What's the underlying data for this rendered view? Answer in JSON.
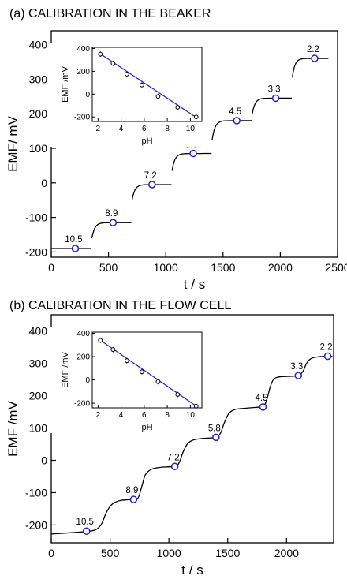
{
  "chart_data": [
    {
      "type": "line",
      "title": "(a) CALIBRATION IN THE BEAKER",
      "xlabel": "t / s",
      "ylabel": "EMF/ mV",
      "xlim": [
        0,
        2500
      ],
      "ylim": [
        -215,
        440
      ],
      "xticks": [
        0,
        500,
        1000,
        1500,
        2000,
        2500
      ],
      "yticks": [
        -200,
        -100,
        0,
        100,
        200,
        300,
        400
      ],
      "grid": false,
      "trace_segments": [
        {
          "t_start": 0,
          "t_end": 350,
          "emf_start": -190,
          "emf_plateau": -190
        },
        {
          "t_start": 355,
          "t_end": 700,
          "emf_start": -160,
          "emf_plateau": -115
        },
        {
          "t_start": 705,
          "t_end": 1050,
          "emf_start": -50,
          "emf_plateau": -5
        },
        {
          "t_start": 1055,
          "t_end": 1400,
          "emf_start": 35,
          "emf_plateau": 85
        },
        {
          "t_start": 1405,
          "t_end": 1750,
          "emf_start": 125,
          "emf_plateau": 180
        },
        {
          "t_start": 1755,
          "t_end": 2100,
          "emf_start": 200,
          "emf_plateau": 245
        },
        {
          "t_start": 2105,
          "t_end": 2420,
          "emf_start": 305,
          "emf_plateau": 360
        }
      ],
      "markers": [
        {
          "t": 210,
          "emf": -190,
          "label": "10.5"
        },
        {
          "t": 540,
          "emf": -115,
          "label": "8.9"
        },
        {
          "t": 880,
          "emf": -5,
          "label": "7.2"
        },
        {
          "t": 1240,
          "emf": 85,
          "label": "5.8"
        },
        {
          "t": 1620,
          "emf": 180,
          "label": "4.5"
        },
        {
          "t": 1960,
          "emf": 245,
          "label": "3.3"
        },
        {
          "t": 2300,
          "emf": 360,
          "label": "2.2"
        }
      ],
      "inset": {
        "xlabel": "pH",
        "ylabel": "EMF /mV",
        "xlim": [
          1.5,
          11
        ],
        "ylim": [
          -240,
          410
        ],
        "xticks": [
          2,
          4,
          6,
          8,
          10
        ],
        "yticks": [
          -200,
          0,
          200,
          400
        ],
        "points": [
          {
            "pH": 2.2,
            "emf": 350
          },
          {
            "pH": 3.3,
            "emf": 270
          },
          {
            "pH": 4.5,
            "emf": 175
          },
          {
            "pH": 5.8,
            "emf": 80
          },
          {
            "pH": 7.2,
            "emf": -20
          },
          {
            "pH": 8.9,
            "emf": -115
          },
          {
            "pH": 10.5,
            "emf": -200
          }
        ],
        "fit_line": {
          "slope": -67,
          "intercept": 500,
          "x_range": [
            2.1,
            10.6
          ]
        }
      }
    },
    {
      "type": "line",
      "title": "(b) CALIBRATION IN THE FLOW CELL",
      "xlabel": "t / s",
      "ylabel": "EMF /mV",
      "xlim": [
        0,
        2400
      ],
      "ylim": [
        -255,
        450
      ],
      "xticks": [
        0,
        500,
        1000,
        1500,
        2000
      ],
      "yticks": [
        -200,
        -100,
        0,
        100,
        200,
        300,
        400
      ],
      "grid": false,
      "curve": [
        [
          0,
          -228
        ],
        [
          200,
          -223
        ],
        [
          330,
          -219
        ],
        [
          390,
          -212
        ],
        [
          430,
          -195
        ],
        [
          470,
          -160
        ],
        [
          520,
          -135
        ],
        [
          580,
          -125
        ],
        [
          650,
          -122
        ],
        [
          700,
          -121
        ],
        [
          740,
          -115
        ],
        [
          770,
          -80
        ],
        [
          800,
          -45
        ],
        [
          850,
          -28
        ],
        [
          920,
          -22
        ],
        [
          1000,
          -20
        ],
        [
          1060,
          -19
        ],
        [
          1090,
          -5
        ],
        [
          1120,
          25
        ],
        [
          1160,
          52
        ],
        [
          1210,
          63
        ],
        [
          1300,
          68
        ],
        [
          1400,
          71
        ],
        [
          1440,
          85
        ],
        [
          1470,
          115
        ],
        [
          1510,
          145
        ],
        [
          1560,
          157
        ],
        [
          1650,
          161
        ],
        [
          1750,
          164
        ],
        [
          1800,
          165
        ],
        [
          1830,
          185
        ],
        [
          1860,
          225
        ],
        [
          1890,
          250
        ],
        [
          1940,
          258
        ],
        [
          2050,
          260
        ],
        [
          2100,
          262
        ],
        [
          2140,
          275
        ],
        [
          2170,
          300
        ],
        [
          2210,
          315
        ],
        [
          2270,
          320
        ],
        [
          2350,
          322
        ],
        [
          2390,
          322
        ]
      ],
      "markers": [
        {
          "t": 300,
          "emf": -219,
          "label": "10.5"
        },
        {
          "t": 700,
          "emf": -121,
          "label": "8.9"
        },
        {
          "t": 1050,
          "emf": -19,
          "label": "7.2"
        },
        {
          "t": 1400,
          "emf": 71,
          "label": "5.8"
        },
        {
          "t": 1800,
          "emf": 165,
          "label": "4.5"
        },
        {
          "t": 2100,
          "emf": 262,
          "label": "3.3"
        },
        {
          "t": 2350,
          "emf": 322,
          "label": "2.2"
        }
      ],
      "inset": {
        "xlabel": "pH",
        "ylabel": "EMF /mV",
        "xlim": [
          1.5,
          11
        ],
        "ylim": [
          -240,
          410
        ],
        "xticks": [
          2,
          4,
          6,
          8,
          10
        ],
        "yticks": [
          -200,
          0,
          200,
          400
        ],
        "points": [
          {
            "pH": 2.2,
            "emf": 340
          },
          {
            "pH": 3.3,
            "emf": 260
          },
          {
            "pH": 4.5,
            "emf": 165
          },
          {
            "pH": 5.8,
            "emf": 70
          },
          {
            "pH": 7.2,
            "emf": -15
          },
          {
            "pH": 8.9,
            "emf": -125
          },
          {
            "pH": 10.5,
            "emf": -225
          }
        ],
        "fit_line": {
          "slope": -68,
          "intercept": 490,
          "x_range": [
            2.1,
            10.6
          ]
        }
      }
    }
  ],
  "colors": {
    "trace": "#000000",
    "marker": "#1f1fd6",
    "fit_line": "#2a2ad8",
    "inset_point": "#000000"
  }
}
